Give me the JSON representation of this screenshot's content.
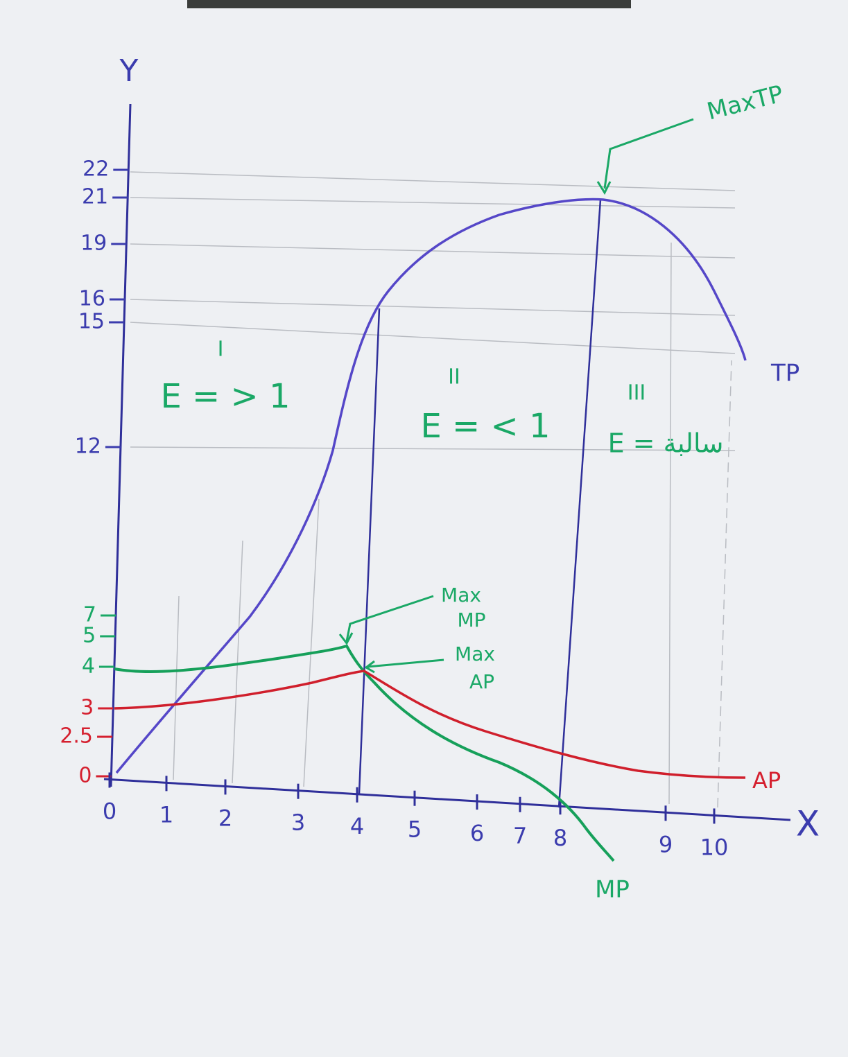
{
  "axes": {
    "y_label": "Y",
    "x_label": "X"
  },
  "y_ticks": [
    "22",
    "21",
    "19",
    "16",
    "15",
    "12",
    "7",
    "5",
    "4",
    "3",
    "2.5",
    "0"
  ],
  "x_ticks": [
    "0",
    "1",
    "2",
    "3",
    "4",
    "5",
    "6",
    "7",
    "8",
    "9",
    "10"
  ],
  "curves": {
    "tp": "TP",
    "ap": "AP",
    "mp": "MP"
  },
  "annotations": {
    "max_tp": "MaxTP",
    "max_mp": [
      "Max",
      "MP"
    ],
    "max_ap": [
      "Max",
      "AP"
    ]
  },
  "stages": [
    {
      "numeral": "I",
      "elasticity": "E = > 1"
    },
    {
      "numeral": "II",
      "elasticity": "E = < 1"
    },
    {
      "numeral": "III",
      "elasticity": "E = سالبة"
    }
  ]
}
